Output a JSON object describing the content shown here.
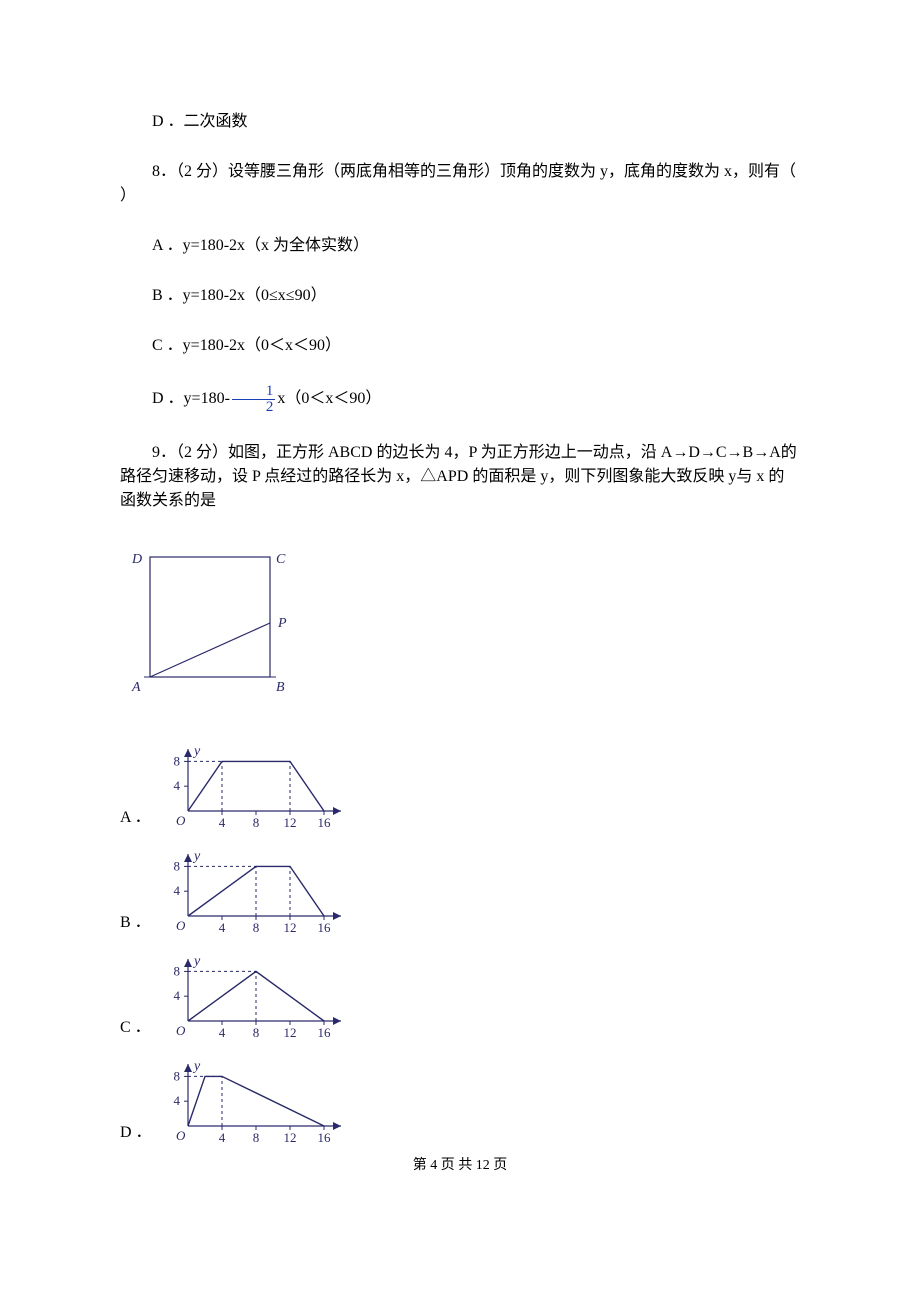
{
  "q7": {
    "option_d": "D ．二次函数"
  },
  "q8": {
    "stem": "8．（2 分）设等腰三角形（两底角相等的三角形）顶角的度数为 y，底角的度数为 x，则有（    ）",
    "opt_a": "A ．y=180-2x（x 为全体实数）",
    "opt_b": "B ．y=180-2x（0≤x≤90）",
    "opt_c": "C ．y=180-2x（0＜x＜90）",
    "opt_d_pre": "D ．y=180-",
    "opt_d_frac_num": "1",
    "opt_d_frac_den": "2",
    "opt_d_post": "x（0＜x＜90）"
  },
  "q9": {
    "stem": "9．（2 分）如图，正方形 ABCD 的边长为 4，P 为正方形边上一动点，沿 A→D→C→B→A的路径匀速移动，设 P 点经过的路径长为 x，△APD 的面积是 y，则下列图象能大致反映 y与 x 的函数关系的是",
    "square": {
      "labels": {
        "A": "A",
        "B": "B",
        "C": "C",
        "D": "D",
        "P": "P"
      },
      "stroke": "#2a2a6a",
      "text_color": "#2a2a6a"
    },
    "axes": {
      "xlabel": "x",
      "ylabel": "y",
      "origin": "O",
      "xticks": [
        "4",
        "8",
        "12",
        "16"
      ],
      "yticks": [
        "4",
        "8"
      ],
      "stroke": "#2a2a6a",
      "text_color": "#2a2a6a",
      "dash": "3,3"
    },
    "options": {
      "A": {
        "label": "A ．",
        "type": "trapezoid",
        "points_x": [
          0,
          4,
          12,
          16
        ],
        "points_y": [
          0,
          8,
          8,
          0
        ],
        "dash_x": [
          4,
          12
        ]
      },
      "B": {
        "label": "B ．",
        "type": "trapezoid",
        "points_x": [
          0,
          8,
          12,
          16
        ],
        "points_y": [
          0,
          8,
          8,
          0
        ],
        "dash_x": [
          8,
          12
        ]
      },
      "C": {
        "label": "C ．",
        "type": "triangle",
        "points_x": [
          0,
          8,
          16
        ],
        "points_y": [
          0,
          8,
          0
        ],
        "dash_x": [
          8
        ]
      },
      "D": {
        "label": "D ．",
        "type": "right-tri",
        "points_x": [
          0,
          4,
          16
        ],
        "points_y": [
          0,
          8,
          0
        ],
        "flat_start": true,
        "dash_x": [
          4
        ]
      }
    }
  },
  "footer": "第 4 页 共 12 页"
}
